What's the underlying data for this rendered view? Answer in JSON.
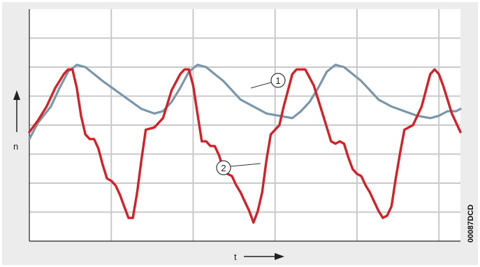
{
  "chart_data": {
    "type": "line",
    "title": "",
    "xlabel": "t",
    "ylabel": "n",
    "figure_code": "00087DCD",
    "grid": true,
    "xlim": [
      0,
      100
    ],
    "ylim": [
      0,
      100
    ],
    "series": [
      {
        "callout": "1",
        "color": "#7a96aa",
        "x": [
          0,
          2,
          5,
          7,
          9,
          11,
          13,
          15,
          17,
          20,
          23,
          26,
          29,
          31,
          33,
          35,
          37,
          39,
          41,
          43,
          45,
          47,
          49,
          52,
          55,
          58,
          61,
          63,
          65,
          67,
          69,
          71,
          73,
          75,
          77,
          79,
          81,
          84,
          87,
          90,
          93,
          95,
          97,
          99,
          100
        ],
        "y": [
          44,
          51,
          58,
          66,
          73,
          76,
          75,
          72,
          69,
          65,
          61,
          57,
          55,
          56,
          60,
          66,
          73,
          76,
          75,
          72,
          69,
          65,
          61,
          58,
          55,
          54,
          53,
          56,
          60,
          66,
          73,
          76,
          75,
          72,
          69,
          65,
          61,
          58,
          56,
          54,
          53,
          54,
          56,
          56,
          57
        ]
      },
      {
        "callout": "2",
        "color": "#d42027",
        "x": [
          0,
          2,
          4,
          6,
          8,
          9,
          10,
          11,
          12,
          13,
          14,
          15,
          16,
          17,
          18,
          19,
          20,
          21,
          22,
          23,
          24,
          25,
          26,
          27,
          29,
          31,
          33,
          35,
          36,
          37,
          38,
          39,
          40,
          41,
          42,
          43,
          44,
          45,
          46,
          47,
          48,
          49,
          50,
          51,
          52,
          53,
          54,
          55,
          56,
          57,
          58,
          59,
          60,
          61,
          62,
          64,
          66,
          68,
          70,
          71,
          72,
          73,
          74,
          75,
          76,
          77,
          78,
          79,
          80,
          81,
          82,
          83,
          84,
          85,
          86,
          87,
          88,
          89,
          90,
          91,
          92,
          93,
          94,
          95,
          96,
          98,
          100
        ],
        "y": [
          47,
          52,
          58,
          66,
          72,
          74,
          74,
          66,
          54,
          46,
          44,
          44,
          40,
          33,
          27,
          26,
          24,
          20,
          15,
          10,
          10,
          21,
          35,
          48,
          49,
          53,
          65,
          72,
          74,
          74,
          67,
          55,
          43,
          43,
          41,
          41,
          37,
          31,
          29,
          28,
          24,
          21,
          17,
          13,
          8,
          13,
          21,
          35,
          46,
          48,
          50,
          58,
          65,
          72,
          74,
          74,
          67,
          55,
          43,
          42,
          43,
          42,
          36,
          31,
          29,
          28,
          24,
          21,
          17,
          13,
          10,
          11,
          15,
          27,
          38,
          48,
          49,
          50,
          54,
          58,
          65,
          72,
          74,
          72,
          67,
          55,
          47
        ]
      }
    ]
  }
}
